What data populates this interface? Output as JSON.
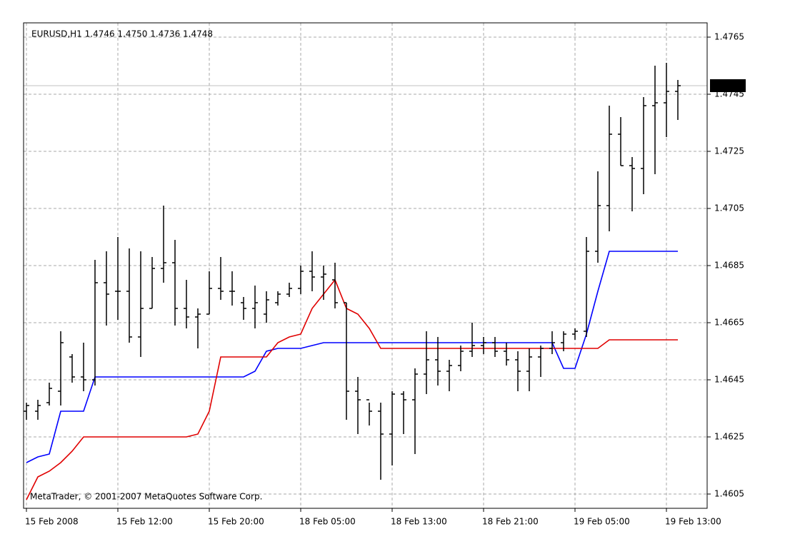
{
  "chart_data": {
    "type": "ohlc",
    "title": "EURUSD,H1  1.4746 1.4750 1.4736 1.4748",
    "watermark": "MetaTrader, © 2001-2007 MetaQuotes Software Corp.",
    "bar_color": "#000000",
    "categories": [
      "15 Feb 2008",
      null,
      null,
      null,
      null,
      null,
      null,
      null,
      "15 Feb 12:00",
      null,
      null,
      null,
      null,
      null,
      null,
      null,
      "15 Feb 20:00",
      null,
      null,
      null,
      null,
      null,
      null,
      null,
      "18 Feb 05:00",
      null,
      null,
      null,
      null,
      null,
      null,
      null,
      "18 Feb 13:00",
      null,
      null,
      null,
      null,
      null,
      null,
      null,
      "18 Feb 21:00",
      null,
      null,
      null,
      null,
      null,
      null,
      null,
      "19 Feb 05:00",
      null,
      null,
      null,
      null,
      null,
      null,
      null,
      "19 Feb 13:00",
      null
    ],
    "open": [
      1.4634,
      1.4634,
      1.4637,
      1.4641,
      1.4653,
      1.4646,
      1.4645,
      1.4679,
      1.4676,
      1.4676,
      1.466,
      1.467,
      1.4684,
      1.4686,
      1.467,
      1.4667,
      1.4668,
      1.4677,
      1.4676,
      1.4672,
      1.467,
      1.4668,
      1.4672,
      1.4675,
      1.4677,
      1.4683,
      1.4681,
      1.468,
      1.4672,
      1.4641,
      1.4638,
      1.4634,
      1.4626,
      1.464,
      1.4638,
      1.4647,
      1.4652,
      1.4648,
      1.465,
      1.4655,
      1.4657,
      1.4658,
      1.4655,
      1.4652,
      1.4648,
      1.4653,
      1.4656,
      1.4658,
      1.4661,
      1.4662,
      1.469,
      1.4706,
      1.4731,
      1.472,
      1.4719,
      1.4741,
      1.4742,
      1.4746
    ],
    "high": [
      1.4637,
      1.4638,
      1.4644,
      1.4662,
      1.4654,
      1.4658,
      1.4687,
      1.469,
      1.4695,
      1.4691,
      1.469,
      1.4688,
      1.4706,
      1.4694,
      1.468,
      1.467,
      1.4683,
      1.4688,
      1.4683,
      1.4674,
      1.4678,
      1.4676,
      1.4676,
      1.4679,
      1.4685,
      1.469,
      1.4685,
      1.4686,
      1.4672,
      1.4646,
      1.4637,
      1.4637,
      1.4641,
      1.4641,
      1.4649,
      1.4662,
      1.466,
      1.4652,
      1.4657,
      1.4665,
      1.466,
      1.466,
      1.4658,
      1.4655,
      1.4656,
      1.4657,
      1.4662,
      1.4662,
      1.4663,
      1.4695,
      1.4718,
      1.4741,
      1.4737,
      1.4723,
      1.4744,
      1.4755,
      1.4756,
      1.475
    ],
    "low": [
      1.4631,
      1.4631,
      1.4636,
      1.4636,
      1.4644,
      1.4641,
      1.4643,
      1.4664,
      1.4666,
      1.4658,
      1.4653,
      1.467,
      1.4679,
      1.4664,
      1.4663,
      1.4656,
      1.4668,
      1.4673,
      1.4671,
      1.4666,
      1.4663,
      1.4665,
      1.4671,
      1.4674,
      1.4675,
      1.4676,
      1.4673,
      1.467,
      1.4631,
      1.4626,
      1.4629,
      1.461,
      1.4615,
      1.4626,
      1.4619,
      1.464,
      1.4643,
      1.4641,
      1.4648,
      1.4653,
      1.4654,
      1.4653,
      1.465,
      1.4641,
      1.4641,
      1.4646,
      1.4654,
      1.4655,
      1.4659,
      1.466,
      1.4686,
      1.4697,
      1.472,
      1.4704,
      1.471,
      1.4717,
      1.473,
      1.4736
    ],
    "close": [
      1.4636,
      1.4636,
      1.4642,
      1.4658,
      1.4646,
      1.4645,
      1.4679,
      1.4675,
      1.4676,
      1.466,
      1.467,
      1.4684,
      1.4686,
      1.467,
      1.4667,
      1.4668,
      1.4677,
      1.4676,
      1.4676,
      1.467,
      1.4672,
      1.4673,
      1.4675,
      1.4677,
      1.4683,
      1.4681,
      1.4682,
      1.4672,
      1.4641,
      1.4638,
      1.4634,
      1.4626,
      1.464,
      1.4638,
      1.4647,
      1.4652,
      1.4648,
      1.465,
      1.4655,
      1.4657,
      1.4658,
      1.4655,
      1.4652,
      1.4648,
      1.4653,
      1.4656,
      1.4658,
      1.4661,
      1.4662,
      1.469,
      1.4706,
      1.4731,
      1.472,
      1.4719,
      1.4741,
      1.4742,
      1.4746,
      1.4748
    ],
    "series": [
      {
        "color": "#0000ff",
        "values": [
          1.4616,
          1.4618,
          1.4619,
          1.4634,
          1.4634,
          1.4634,
          1.4646,
          1.4646,
          1.4646,
          1.4646,
          1.4646,
          1.4646,
          1.4646,
          1.4646,
          1.4646,
          1.4646,
          1.4646,
          1.4646,
          1.4646,
          1.4646,
          1.4648,
          1.4655,
          1.4656,
          1.4656,
          1.4656,
          1.4657,
          1.4658,
          1.4658,
          1.4658,
          1.4658,
          1.4658,
          1.4658,
          1.4658,
          1.4658,
          1.4658,
          1.4658,
          1.4658,
          1.4658,
          1.4658,
          1.4658,
          1.4658,
          1.4658,
          1.4658,
          1.4658,
          1.4658,
          1.4658,
          1.4658,
          1.4649,
          1.4649,
          1.4661,
          1.4676,
          1.469,
          1.469,
          1.469,
          1.469,
          1.469,
          1.469,
          1.469
        ]
      },
      {
        "color": "#e00000",
        "values": [
          1.4603,
          1.4611,
          1.4613,
          1.4616,
          1.462,
          1.4625,
          1.4625,
          1.4625,
          1.4625,
          1.4625,
          1.4625,
          1.4625,
          1.4625,
          1.4625,
          1.4625,
          1.4626,
          1.4634,
          1.4653,
          1.4653,
          1.4653,
          1.4653,
          1.4653,
          1.4658,
          1.466,
          1.4661,
          1.467,
          1.4675,
          1.468,
          1.467,
          1.4668,
          1.4663,
          1.4656,
          1.4656,
          1.4656,
          1.4656,
          1.4656,
          1.4656,
          1.4656,
          1.4656,
          1.4656,
          1.4656,
          1.4656,
          1.4656,
          1.4656,
          1.4656,
          1.4656,
          1.4656,
          1.4656,
          1.4656,
          1.4656,
          1.4656,
          1.4659,
          1.4659,
          1.4659,
          1.4659,
          1.4659,
          1.4659,
          1.4659
        ]
      }
    ],
    "last_price": 1.4748,
    "ylim": [
      1.46,
      1.477
    ],
    "yticks": [
      1.4605,
      1.4625,
      1.4645,
      1.4665,
      1.4685,
      1.4705,
      1.4725,
      1.4745,
      1.4765
    ],
    "grid": true
  }
}
